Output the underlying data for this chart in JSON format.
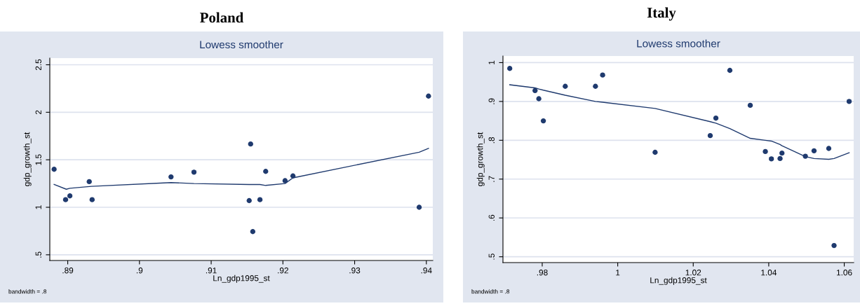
{
  "chart_data": [
    {
      "type": "scatter",
      "title": "Poland",
      "subtitle": "Lowess smoother",
      "xlabel": "Ln_gdp1995_st",
      "ylabel": "gdp_growth_st",
      "annotations": [
        "bandwidth = .8"
      ],
      "series": [
        {
          "marker": "circle",
          "color": "#1f3a6e",
          "x": [
            0.8881,
            0.8897,
            0.8903,
            0.893,
            0.8934,
            0.9044,
            0.9076,
            0.9155,
            0.9176,
            0.9153,
            0.9168,
            0.9158,
            0.9203,
            0.9214,
            0.939,
            0.9403
          ],
          "values": [
            1.4,
            1.08,
            1.12,
            1.27,
            1.08,
            1.32,
            1.37,
            1.666,
            1.378,
            1.07,
            1.08,
            0.744,
            1.28,
            1.33,
            1.0,
            2.17
          ]
        },
        {
          "type": "line",
          "marker": "none",
          "color": "#1f3a6e",
          "x": [
            0.8881,
            0.8898,
            0.8903,
            0.8933,
            0.9044,
            0.9076,
            0.9153,
            0.9168,
            0.9176,
            0.9203,
            0.9214,
            0.939,
            0.9403
          ],
          "values": [
            1.24,
            1.19,
            1.2,
            1.22,
            1.26,
            1.25,
            1.24,
            1.24,
            1.23,
            1.25,
            1.31,
            1.58,
            1.62
          ]
        }
      ],
      "xlim": [
        0.8875,
        0.9409
      ],
      "ylim": [
        0.44,
        2.57
      ],
      "xticks": [
        {
          "value": 0.89,
          "label": ".89"
        },
        {
          "value": 0.9,
          "label": ".9"
        },
        {
          "value": 0.91,
          "label": ".91"
        },
        {
          "value": 0.92,
          "label": ".92"
        },
        {
          "value": 0.93,
          "label": ".93"
        },
        {
          "value": 0.94,
          "label": ".94"
        }
      ],
      "yticks": [
        {
          "value": 0.5,
          "label": ".5"
        },
        1,
        1.5,
        2,
        2.5
      ],
      "grid": "y"
    },
    {
      "type": "scatter",
      "title": "Italy",
      "subtitle": "Lowess smoother",
      "xlabel": "Ln_gdp1995_st",
      "ylabel": "gdp_growth_st",
      "annotations": [
        "bandwidth = .8"
      ],
      "series": [
        {
          "marker": "circle",
          "color": "#1f3a6e",
          "x": [
            0.9714,
            0.9781,
            0.9791,
            0.9803,
            0.9861,
            0.9941,
            0.996,
            1.0099,
            1.0245,
            1.026,
            1.0297,
            1.0351,
            1.0391,
            1.0407,
            1.043,
            1.0435,
            1.0497,
            1.052,
            1.0559,
            1.0573,
            1.0613
          ],
          "values": [
            0.985,
            0.928,
            0.907,
            0.85,
            0.939,
            0.939,
            0.968,
            0.769,
            0.812,
            0.857,
            0.98,
            0.89,
            0.771,
            0.752,
            0.753,
            0.767,
            0.759,
            0.773,
            0.779,
            0.529,
            0.9
          ]
        },
        {
          "type": "line",
          "marker": "none",
          "color": "#1f3a6e",
          "x": [
            0.9714,
            0.9781,
            0.9791,
            0.9803,
            0.9861,
            0.9941,
            0.996,
            1.0099,
            1.0245,
            1.026,
            1.0297,
            1.0351,
            1.0391,
            1.0407,
            1.043,
            1.0435,
            1.0497,
            1.052,
            1.0559,
            1.0573,
            1.0613
          ],
          "values": [
            0.943,
            0.935,
            0.932,
            0.929,
            0.916,
            0.9,
            0.898,
            0.882,
            0.848,
            0.844,
            0.83,
            0.805,
            0.8,
            0.798,
            0.789,
            0.786,
            0.758,
            0.753,
            0.751,
            0.753,
            0.768
          ]
        }
      ],
      "xlim": [
        0.9696,
        1.0625
      ],
      "ylim": [
        0.485,
        1.017
      ],
      "xticks": [
        {
          "value": 0.98,
          "label": ".98"
        },
        1,
        1.02,
        1.04,
        1.06
      ],
      "yticks": [
        {
          "value": 0.5,
          "label": ".5"
        },
        {
          "value": 0.6,
          "label": ".6"
        },
        {
          "value": 0.7,
          "label": ".7"
        },
        {
          "value": 0.8,
          "label": ".8"
        },
        {
          "value": 0.9,
          "label": ".9"
        },
        1
      ],
      "grid": "y"
    }
  ]
}
